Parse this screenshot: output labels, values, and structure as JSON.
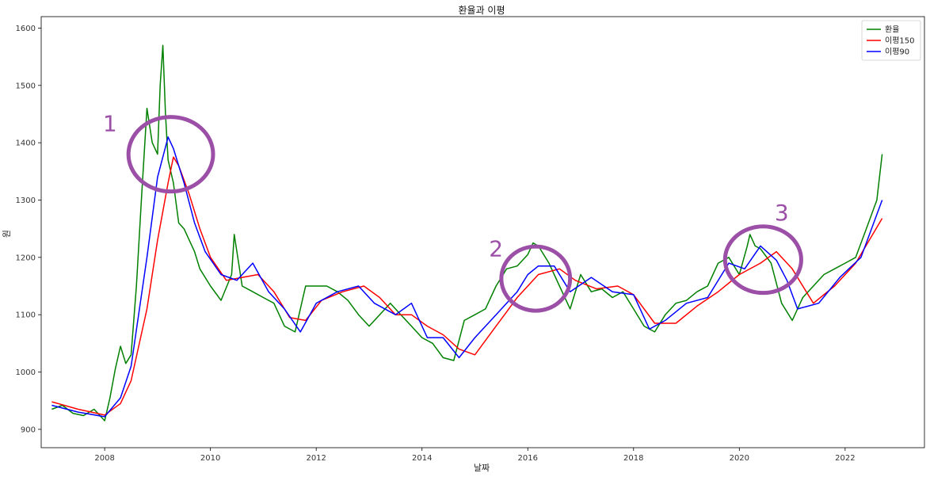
{
  "chart_data": {
    "type": "line",
    "title": "환율과 이평",
    "xlabel": "날짜",
    "ylabel": "원",
    "xlim": [
      2006.8,
      2023.5
    ],
    "ylim": [
      868,
      1620
    ],
    "x_ticks": [
      2008,
      2010,
      2012,
      2014,
      2016,
      2018,
      2020,
      2022
    ],
    "y_ticks": [
      900,
      1000,
      1100,
      1200,
      1300,
      1400,
      1500,
      1600
    ],
    "grid": false,
    "legend_position": "top-right",
    "colors": {
      "환율": "#008000",
      "이평150": "#ff0000",
      "이평90": "#0000ff",
      "annotation": "#9b4fa6"
    },
    "series": [
      {
        "name": "환율",
        "x": [
          2007.0,
          2007.2,
          2007.4,
          2007.6,
          2007.8,
          2008.0,
          2008.1,
          2008.2,
          2008.3,
          2008.4,
          2008.5,
          2008.6,
          2008.7,
          2008.8,
          2008.9,
          2009.0,
          2009.05,
          2009.1,
          2009.15,
          2009.2,
          2009.3,
          2009.4,
          2009.5,
          2009.6,
          2009.7,
          2009.8,
          2009.9,
          2010.0,
          2010.2,
          2010.4,
          2010.45,
          2010.6,
          2010.8,
          2011.0,
          2011.2,
          2011.4,
          2011.6,
          2011.8,
          2012.0,
          2012.2,
          2012.4,
          2012.6,
          2012.8,
          2013.0,
          2013.2,
          2013.4,
          2013.6,
          2013.8,
          2014.0,
          2014.2,
          2014.4,
          2014.6,
          2014.8,
          2015.0,
          2015.2,
          2015.4,
          2015.6,
          2015.8,
          2016.0,
          2016.1,
          2016.2,
          2016.4,
          2016.6,
          2016.8,
          2017.0,
          2017.2,
          2017.4,
          2017.6,
          2017.8,
          2018.0,
          2018.2,
          2018.4,
          2018.6,
          2018.8,
          2019.0,
          2019.2,
          2019.4,
          2019.6,
          2019.8,
          2020.0,
          2020.15,
          2020.2,
          2020.3,
          2020.4,
          2020.6,
          2020.8,
          2021.0,
          2021.2,
          2021.4,
          2021.6,
          2021.8,
          2022.0,
          2022.2,
          2022.4,
          2022.6,
          2022.7
        ],
        "values": [
          935,
          942,
          928,
          924,
          935,
          915,
          955,
          1005,
          1045,
          1015,
          1030,
          1150,
          1310,
          1460,
          1400,
          1380,
          1500,
          1570,
          1450,
          1370,
          1330,
          1260,
          1250,
          1230,
          1210,
          1180,
          1165,
          1150,
          1125,
          1170,
          1240,
          1150,
          1140,
          1130,
          1120,
          1080,
          1070,
          1150,
          1150,
          1150,
          1140,
          1125,
          1100,
          1080,
          1100,
          1120,
          1100,
          1080,
          1060,
          1050,
          1025,
          1020,
          1090,
          1100,
          1110,
          1150,
          1180,
          1185,
          1205,
          1225,
          1220,
          1190,
          1150,
          1110,
          1170,
          1140,
          1145,
          1130,
          1140,
          1110,
          1080,
          1070,
          1100,
          1120,
          1125,
          1140,
          1150,
          1190,
          1200,
          1170,
          1220,
          1240,
          1220,
          1215,
          1190,
          1120,
          1090,
          1130,
          1150,
          1170,
          1180,
          1190,
          1200,
          1250,
          1300,
          1380
        ]
      },
      {
        "name": "이평150",
        "x": [
          2007.0,
          2007.5,
          2008.0,
          2008.3,
          2008.5,
          2008.8,
          2009.0,
          2009.2,
          2009.3,
          2009.4,
          2009.6,
          2009.8,
          2010.0,
          2010.3,
          2010.6,
          2010.9,
          2011.2,
          2011.5,
          2011.8,
          2012.1,
          2012.5,
          2012.9,
          2013.2,
          2013.5,
          2013.8,
          2014.1,
          2014.4,
          2014.7,
          2015.0,
          2015.4,
          2015.8,
          2016.2,
          2016.6,
          2016.9,
          2017.3,
          2017.7,
          2018.0,
          2018.4,
          2018.8,
          2019.2,
          2019.6,
          2020.0,
          2020.4,
          2020.7,
          2021.0,
          2021.4,
          2021.8,
          2022.2,
          2022.7
        ],
        "values": [
          948,
          935,
          925,
          945,
          985,
          1110,
          1230,
          1330,
          1375,
          1360,
          1310,
          1250,
          1200,
          1160,
          1165,
          1170,
          1140,
          1095,
          1090,
          1125,
          1140,
          1150,
          1130,
          1100,
          1100,
          1080,
          1065,
          1040,
          1030,
          1080,
          1130,
          1170,
          1180,
          1160,
          1145,
          1150,
          1135,
          1085,
          1085,
          1115,
          1140,
          1170,
          1190,
          1210,
          1180,
          1120,
          1150,
          1190,
          1268
        ]
      },
      {
        "name": "이평90",
        "x": [
          2007.0,
          2007.5,
          2008.0,
          2008.3,
          2008.5,
          2008.8,
          2009.0,
          2009.2,
          2009.3,
          2009.5,
          2009.7,
          2009.9,
          2010.2,
          2010.5,
          2010.8,
          2011.1,
          2011.4,
          2011.7,
          2012.0,
          2012.4,
          2012.8,
          2013.1,
          2013.5,
          2013.8,
          2014.1,
          2014.4,
          2014.7,
          2015.0,
          2015.4,
          2015.8,
          2016.0,
          2016.2,
          2016.5,
          2016.8,
          2017.2,
          2017.6,
          2018.0,
          2018.3,
          2018.6,
          2019.0,
          2019.4,
          2019.8,
          2020.1,
          2020.4,
          2020.7,
          2020.9,
          2021.1,
          2021.5,
          2021.9,
          2022.3,
          2022.7
        ],
        "values": [
          942,
          930,
          922,
          955,
          1010,
          1200,
          1340,
          1410,
          1390,
          1330,
          1260,
          1210,
          1170,
          1160,
          1190,
          1140,
          1110,
          1070,
          1120,
          1140,
          1150,
          1120,
          1100,
          1120,
          1060,
          1060,
          1025,
          1060,
          1100,
          1140,
          1170,
          1185,
          1185,
          1140,
          1165,
          1140,
          1135,
          1075,
          1090,
          1120,
          1130,
          1190,
          1180,
          1220,
          1195,
          1160,
          1110,
          1120,
          1165,
          1200,
          1300
        ]
      }
    ],
    "annotations": [
      {
        "label": "1",
        "cx": 2009.25,
        "cy": 1380,
        "rx": 0.8,
        "ry": 65,
        "label_x": 2008.1,
        "label_y": 1420
      },
      {
        "label": "2",
        "cx": 2016.15,
        "cy": 1163,
        "rx": 0.65,
        "ry": 56,
        "label_x": 2015.4,
        "label_y": 1202
      },
      {
        "label": "3",
        "cx": 2020.45,
        "cy": 1196,
        "rx": 0.72,
        "ry": 58,
        "label_x": 2020.8,
        "label_y": 1265
      }
    ]
  }
}
